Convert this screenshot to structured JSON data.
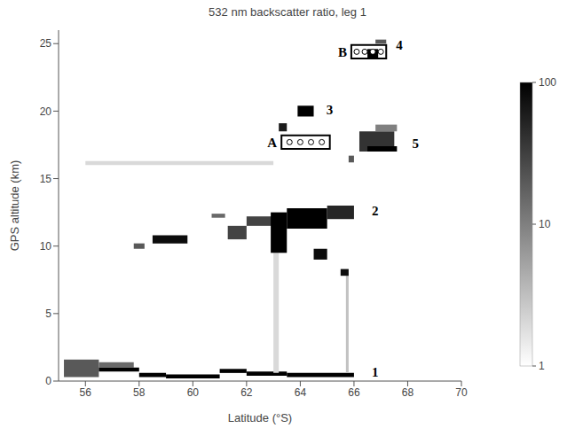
{
  "chart_data": {
    "type": "heatmap",
    "title": "532 nm backscatter ratio, leg 1",
    "x_label": "Latitude (°S)",
    "y_label": "GPS altitude (km)",
    "xlim": [
      55,
      70
    ],
    "xticks": [
      56,
      58,
      60,
      62,
      64,
      66,
      68,
      70
    ],
    "ylim": [
      0,
      26
    ],
    "yticks": [
      0,
      5,
      10,
      15,
      20,
      25
    ],
    "colorbar": {
      "range": [
        1,
        100
      ],
      "ticks": [
        1,
        10,
        100
      ],
      "log": true
    },
    "cells": [
      {
        "x0": 55.2,
        "x1": 56.5,
        "y0": 0.3,
        "y1": 1.6,
        "value": 20
      },
      {
        "x0": 56.5,
        "x1": 57.8,
        "y0": 1.0,
        "y1": 1.4,
        "value": 15
      },
      {
        "x0": 56.5,
        "x1": 58,
        "y0": 0.7,
        "y1": 1.0,
        "value": 100
      },
      {
        "x0": 58,
        "x1": 59,
        "y0": 0.3,
        "y1": 0.6,
        "value": 100
      },
      {
        "x0": 59,
        "x1": 61,
        "y0": 0.2,
        "y1": 0.5,
        "value": 100
      },
      {
        "x0": 61,
        "x1": 62,
        "y0": 0.6,
        "y1": 0.9,
        "value": 100
      },
      {
        "x0": 62,
        "x1": 63.5,
        "y0": 0.4,
        "y1": 0.7,
        "value": 100
      },
      {
        "x0": 63.5,
        "x1": 66,
        "y0": 0.3,
        "y1": 0.6,
        "value": 100
      },
      {
        "x0": 63,
        "x1": 63.2,
        "y0": 0.6,
        "y1": 9.5,
        "value": 2
      },
      {
        "x0": 65.7,
        "x1": 65.8,
        "y0": 0.6,
        "y1": 8,
        "value": 3
      },
      {
        "x0": 56,
        "x1": 63,
        "y0": 16,
        "y1": 16.3,
        "value": 2
      },
      {
        "x0": 57.8,
        "x1": 58.2,
        "y0": 9.8,
        "y1": 10.2,
        "value": 20
      },
      {
        "x0": 58.5,
        "x1": 59.8,
        "y0": 10.2,
        "y1": 10.8,
        "value": 80
      },
      {
        "x0": 60.7,
        "x1": 61.2,
        "y0": 12.1,
        "y1": 12.4,
        "value": 15
      },
      {
        "x0": 61.3,
        "x1": 62,
        "y0": 10.5,
        "y1": 11.5,
        "value": 30
      },
      {
        "x0": 62,
        "x1": 63,
        "y0": 11.5,
        "y1": 12.2,
        "value": 30
      },
      {
        "x0": 62.9,
        "x1": 63.5,
        "y0": 9.5,
        "y1": 12.5,
        "value": 100
      },
      {
        "x0": 63.5,
        "x1": 65,
        "y0": 11.3,
        "y1": 12.8,
        "value": 100
      },
      {
        "x0": 65,
        "x1": 66,
        "y0": 12,
        "y1": 13,
        "value": 50
      },
      {
        "x0": 64.5,
        "x1": 65,
        "y0": 9,
        "y1": 9.8,
        "value": 80
      },
      {
        "x0": 65.5,
        "x1": 65.8,
        "y0": 7.8,
        "y1": 8.3,
        "value": 80
      },
      {
        "x0": 63.2,
        "x1": 63.5,
        "y0": 18.5,
        "y1": 19.1,
        "value": 60
      },
      {
        "x0": 63.9,
        "x1": 64.5,
        "y0": 19.6,
        "y1": 20.4,
        "value": 100
      },
      {
        "x0": 66.5,
        "x1": 66.9,
        "y0": 23.9,
        "y1": 24.6,
        "value": 100
      },
      {
        "x0": 66.8,
        "x1": 67.2,
        "y0": 25,
        "y1": 25.3,
        "value": 20
      },
      {
        "x0": 65.8,
        "x1": 66,
        "y0": 16.2,
        "y1": 16.7,
        "value": 20
      },
      {
        "x0": 66.2,
        "x1": 67.5,
        "y0": 17,
        "y1": 18.5,
        "value": 40
      },
      {
        "x0": 66.8,
        "x1": 67.6,
        "y0": 18.5,
        "y1": 19,
        "value": 10
      },
      {
        "x0": 66.5,
        "x1": 67.6,
        "y0": 17,
        "y1": 17.4,
        "value": 100
      }
    ],
    "annotations": [
      {
        "text": "1",
        "x": 66.6,
        "y": 0.7
      },
      {
        "text": "2",
        "x": 66.6,
        "y": 12.6
      },
      {
        "text": "3",
        "x": 64.9,
        "y": 20.1
      },
      {
        "text": "4",
        "x": 67.5,
        "y": 24.9
      },
      {
        "text": "5",
        "x": 68.1,
        "y": 17.6
      }
    ],
    "boxes": [
      {
        "label": "A",
        "x0": 63.3,
        "x1": 65.1,
        "y0": 17.2,
        "y1": 18.2,
        "markers_x": [
          63.6,
          64.0,
          64.4,
          64.8
        ],
        "marker_y": 17.7
      },
      {
        "label": "B",
        "x0": 65.9,
        "x1": 67.2,
        "y0": 23.9,
        "y1": 24.9,
        "markers_x": [
          66.1,
          66.4,
          66.7,
          67.0
        ],
        "marker_y": 24.4
      }
    ]
  }
}
